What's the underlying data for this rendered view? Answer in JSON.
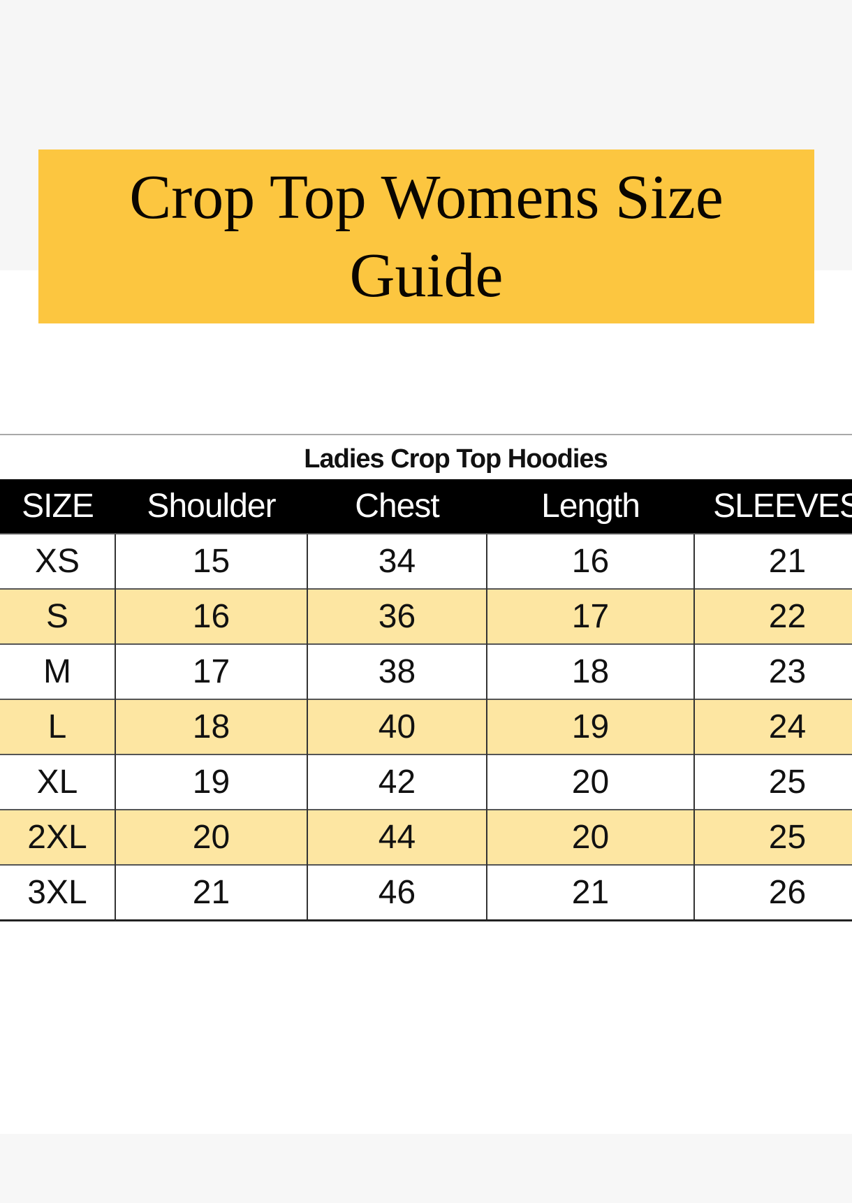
{
  "title": "Crop Top Womens Size Guide",
  "table": {
    "caption": "Ladies Crop Top Hoodies",
    "headers": [
      "SIZE",
      "Shoulder",
      "Chest",
      "Length",
      "SLEEVES"
    ],
    "rows": [
      [
        "XS",
        "15",
        "34",
        "16",
        "21"
      ],
      [
        "S",
        "16",
        "36",
        "17",
        "22"
      ],
      [
        "M",
        "17",
        "38",
        "18",
        "23"
      ],
      [
        "L",
        "18",
        "40",
        "19",
        "24"
      ],
      [
        "XL",
        "19",
        "42",
        "20",
        "25"
      ],
      [
        "2XL",
        "20",
        "44",
        "20",
        "25"
      ],
      [
        "3XL",
        "21",
        "46",
        "21",
        "26"
      ]
    ]
  },
  "colors": {
    "banner": "#fcc640",
    "alt_row": "#fde6a2",
    "header_bg": "#000000"
  }
}
